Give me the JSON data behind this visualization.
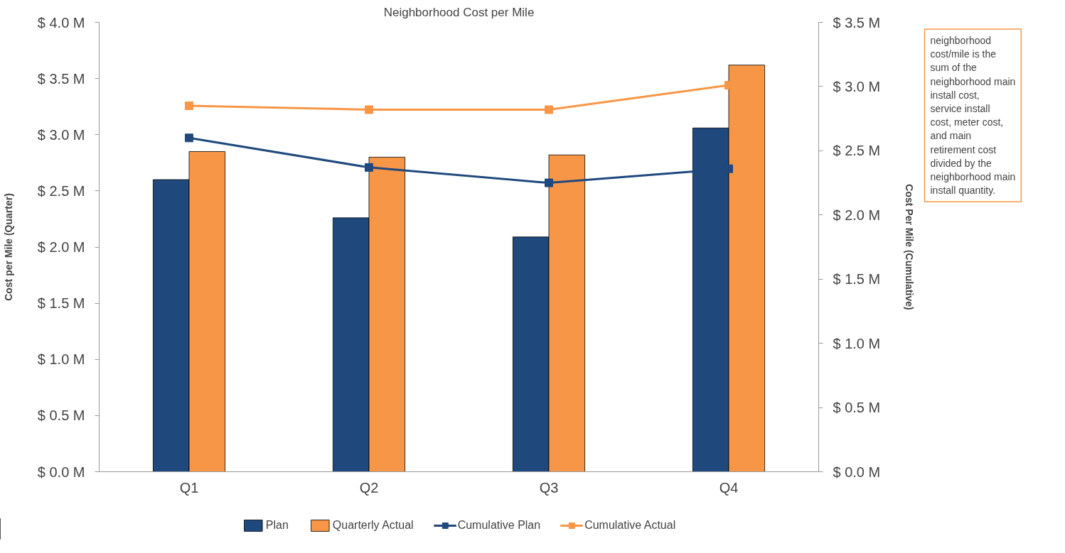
{
  "chart_data": {
    "type": "bar",
    "title": "Neighborhood Cost per Mile",
    "ylabel": "Cost per Mile (Quarter)",
    "y2label": "Cost Per Mile (Cumulative)",
    "categories": [
      "Q1",
      "Q2",
      "Q3",
      "Q4"
    ],
    "series": [
      {
        "name": "Plan",
        "color": "#1f497d",
        "values": [
          2.6,
          2.26,
          2.09,
          3.06
        ]
      },
      {
        "name": "Quarterly Actual",
        "color": "#f79646",
        "values": [
          2.85,
          2.8,
          2.82,
          3.62
        ]
      },
      {
        "name": "Cumulative Plan",
        "type": "line",
        "axis": "y2",
        "color": "#1f497d",
        "values": [
          2.6,
          2.37,
          2.25,
          2.36
        ]
      },
      {
        "name": "Cumulative Actual",
        "type": "line",
        "axis": "y2",
        "color": "#f79646",
        "values": [
          2.85,
          2.82,
          2.82,
          3.01
        ]
      }
    ],
    "ylim": [
      0,
      4.0
    ],
    "yticks": [
      {
        "value": 0,
        "label": "$ 0.0 M"
      },
      {
        "value": 0.5,
        "label": "$ 0.5 M"
      },
      {
        "value": 1.0,
        "label": "$ 1.0 M"
      },
      {
        "value": 1.5,
        "label": "$ 1.5 M"
      },
      {
        "value": 2.0,
        "label": "$ 2.0 M"
      },
      {
        "value": 2.5,
        "label": "$ 2.5 M"
      },
      {
        "value": 3.0,
        "label": "$ 3.0 M"
      },
      {
        "value": 3.5,
        "label": "$ 3.5 M"
      },
      {
        "value": 4.0,
        "label": "$ 4.0 M"
      }
    ],
    "y2lim": [
      0,
      3.5
    ],
    "y2ticks": [
      {
        "value": 0,
        "label": "$ 0.0 M"
      },
      {
        "value": 0.5,
        "label": "$ 0.5 M"
      },
      {
        "value": 1.0,
        "label": "$ 1.0 M"
      },
      {
        "value": 1.5,
        "label": "$ 1.5 M"
      },
      {
        "value": 2.0,
        "label": "$ 2.0 M"
      },
      {
        "value": 2.5,
        "label": "$ 2.5 M"
      },
      {
        "value": 3.0,
        "label": "$ 3.0 M"
      },
      {
        "value": 3.5,
        "label": "$ 3.5 M"
      }
    ],
    "marker": "square",
    "grid": false,
    "legend": "bottom",
    "annotations": [
      "neighborhood cost/mile is the sum of the neighborhood main install cost, service install cost, meter cost, and main retirement cost divided by the neighborhood main install quantity."
    ]
  }
}
